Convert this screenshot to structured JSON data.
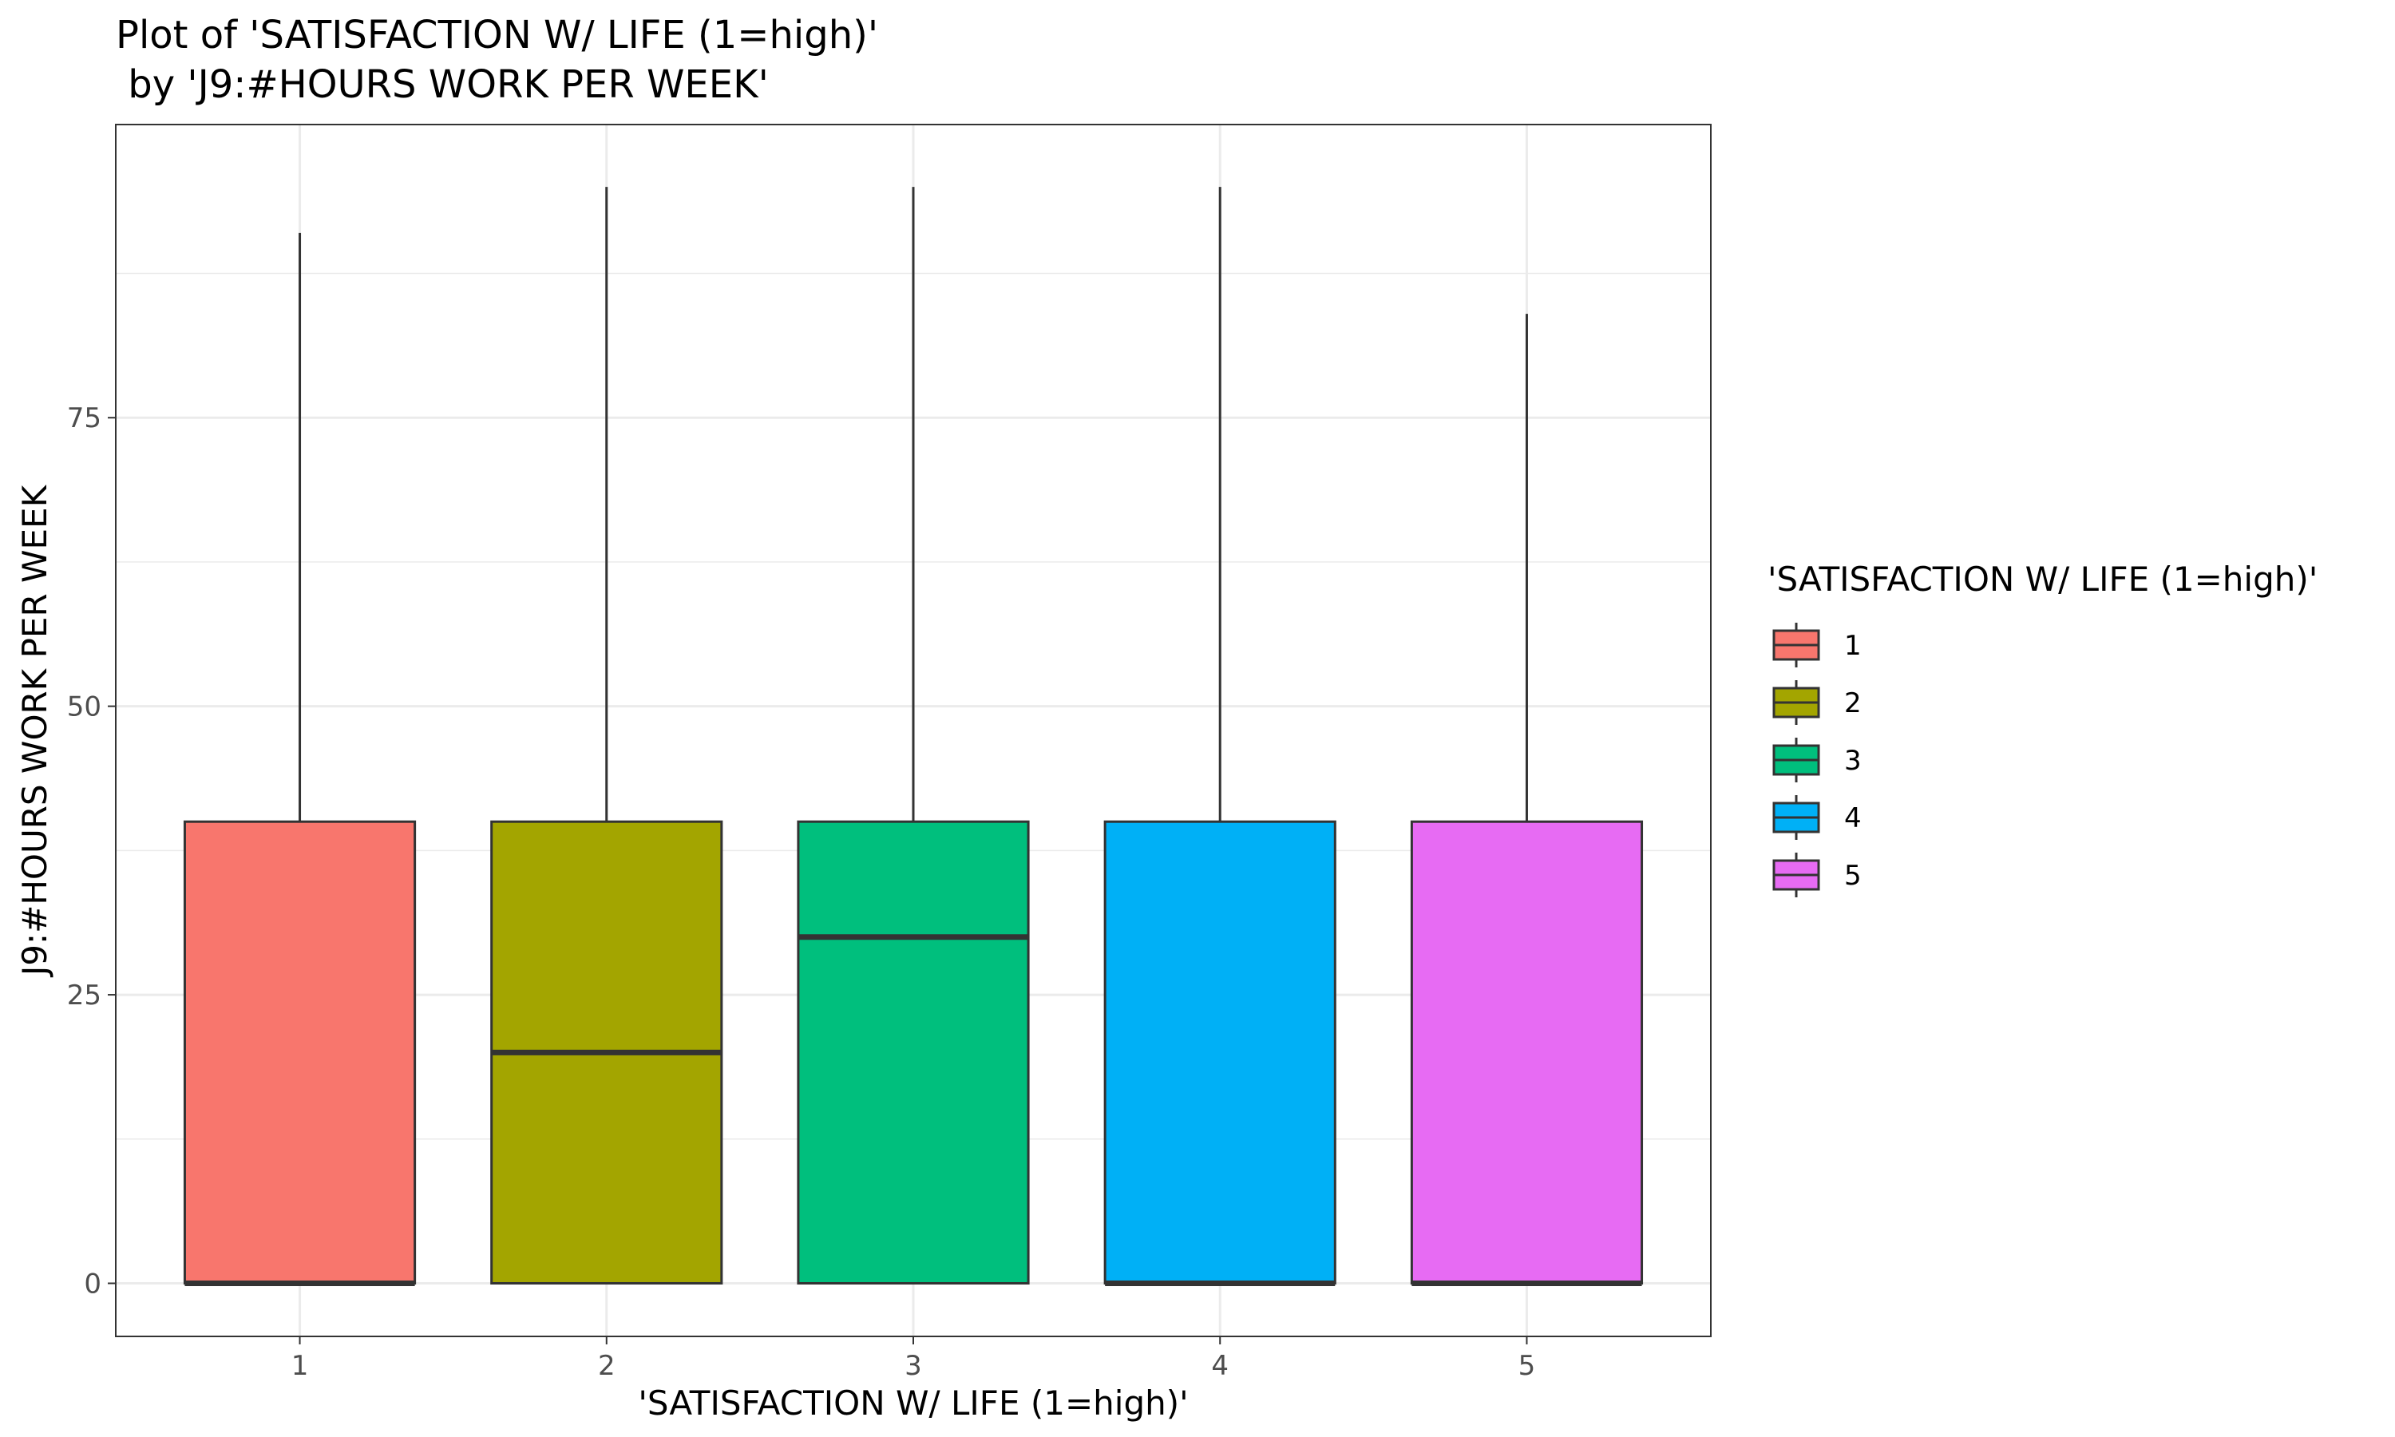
{
  "chart_data": {
    "type": "box",
    "title_line1": "Plot of 'SATISFACTION W/ LIFE (1=high)'",
    "title_line2": " by 'J9:#HOURS WORK PER WEEK'",
    "xlabel": "'SATISFACTION W/ LIFE (1=high)'",
    "ylabel": "J9:#HOURS WORK PER WEEK",
    "ylim": [
      -4.6,
      100.4
    ],
    "y_ticks": [
      0,
      25,
      50,
      75
    ],
    "grid": true,
    "legend": {
      "title": "'SATISFACTION W/ LIFE (1=high)'",
      "position": "right"
    },
    "categories": [
      "1",
      "2",
      "3",
      "4",
      "5"
    ],
    "boxes": [
      {
        "category": "1",
        "min": 0,
        "q1": 0,
        "median": 0,
        "q3": 40,
        "max": 91,
        "color": "#F8766D"
      },
      {
        "category": "2",
        "min": 0,
        "q1": 0,
        "median": 20,
        "q3": 40,
        "max": 95,
        "color": "#A3A500"
      },
      {
        "category": "3",
        "min": 0,
        "q1": 0,
        "median": 30,
        "q3": 40,
        "max": 95,
        "color": "#00BF7D"
      },
      {
        "category": "4",
        "min": 0,
        "q1": 0,
        "median": 0,
        "q3": 40,
        "max": 95,
        "color": "#00B0F6"
      },
      {
        "category": "5",
        "min": 0,
        "q1": 0,
        "median": 0,
        "q3": 40,
        "max": 84,
        "color": "#E76BF3"
      }
    ]
  }
}
